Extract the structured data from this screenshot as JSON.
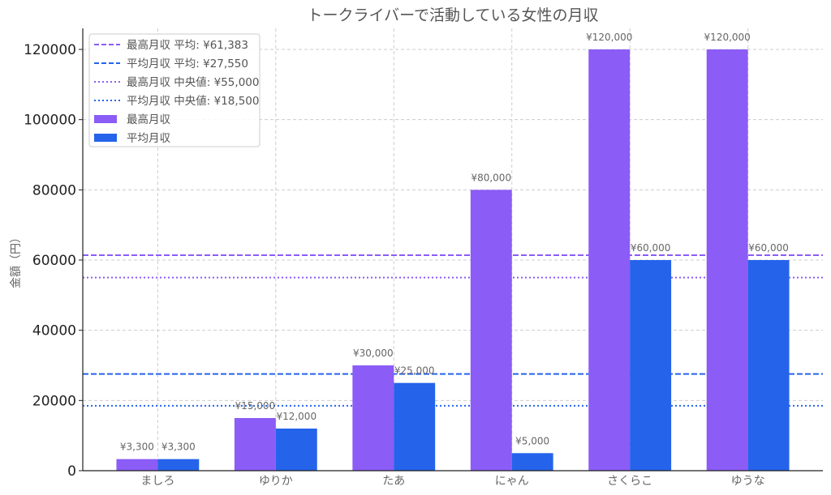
{
  "chart_data": {
    "type": "bar",
    "title": "トークライバーで活動している女性の月収",
    "xlabel": "",
    "ylabel": "金額（円）",
    "categories": [
      "ましろ",
      "ゆりか",
      "たあ",
      "にゃん",
      "さくらこ",
      "ゆうな"
    ],
    "series": [
      {
        "name": "最高月収",
        "color": "#8b5cf6",
        "values": [
          3300,
          15000,
          30000,
          80000,
          120000,
          120000
        ],
        "labels": [
          "¥3,300",
          "¥15,000",
          "¥30,000",
          "¥80,000",
          "¥120,000",
          "¥120,000"
        ]
      },
      {
        "name": "平均月収",
        "color": "#2563eb",
        "values": [
          3300,
          12000,
          25000,
          5000,
          60000,
          60000
        ],
        "labels": [
          "¥3,300",
          "¥12,000",
          "¥25,000",
          "¥5,000",
          "¥60,000",
          "¥60,000"
        ]
      }
    ],
    "reference_lines": [
      {
        "name": "最高月収 平均: ¥61,383",
        "value": 61383,
        "color": "#8b5cf6",
        "style": "dashed"
      },
      {
        "name": "平均月収 平均: ¥27,550",
        "value": 27550,
        "color": "#2563eb",
        "style": "dashed"
      },
      {
        "name": "最高月収 中央値: ¥55,000",
        "value": 55000,
        "color": "#8b5cf6",
        "style": "dotted"
      },
      {
        "name": "平均月収 中央値: ¥18,500",
        "value": 18500,
        "color": "#2563eb",
        "style": "dotted"
      }
    ],
    "yticks": [
      0,
      20000,
      40000,
      60000,
      80000,
      100000,
      120000
    ],
    "ylim": [
      0,
      126000
    ],
    "grid": true,
    "legend": "top-left"
  }
}
